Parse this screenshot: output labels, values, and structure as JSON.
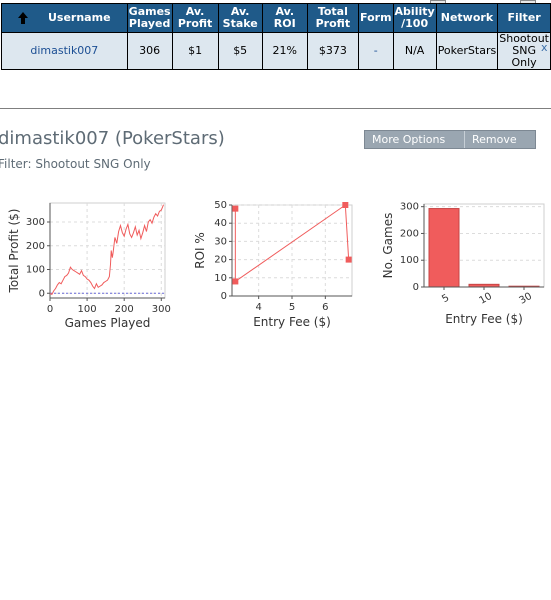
{
  "table": {
    "headers": [
      "Username",
      "Games Played",
      "Av. Profit",
      "Av. Stake",
      "Av. ROI",
      "Total Profit",
      "Form",
      "Ability /100",
      "Network",
      "Filter"
    ],
    "header_lines": [
      [
        "Username"
      ],
      [
        "Games",
        "Played"
      ],
      [
        "Av.",
        "Profit"
      ],
      [
        "Av.",
        "Stake"
      ],
      [
        "Av. ROI"
      ],
      [
        "Total",
        "Profit"
      ],
      [
        "Form"
      ],
      [
        "Ability",
        "/100"
      ],
      [
        "Network"
      ],
      [
        "Filter"
      ]
    ],
    "row": {
      "username": "dimastik007",
      "games_played": "306",
      "av_profit": "$1",
      "av_stake": "$5",
      "av_roi": "21%",
      "total_profit": "$373",
      "form": "-",
      "ability": "N/A",
      "network": "PokerStars",
      "filter_line1": "Shootout",
      "filter_line2": "SNG Only",
      "remove": "x"
    }
  },
  "player": {
    "title": "dimastik007 (PokerStars)",
    "filter": "Filter: Shootout SNG Only"
  },
  "options": {
    "more_options": "More Options",
    "remove": "Remove"
  },
  "colors": {
    "header_bg": "#1f5a89",
    "row_bg": "#dde7ef",
    "link": "#1c4f94",
    "series": "#f05c5c"
  },
  "chart_data": [
    {
      "type": "line",
      "xlabel": "Games Played",
      "ylabel": "Total Profit ($)",
      "xlim": [
        0,
        310
      ],
      "ylim": [
        -20,
        380
      ],
      "xticks": [
        "0",
        "100",
        "200",
        "300"
      ],
      "yticks": [
        "0",
        "100",
        "200",
        "300"
      ],
      "grid": true,
      "baseline": 0,
      "x": [
        0,
        5,
        10,
        15,
        20,
        25,
        30,
        35,
        40,
        45,
        50,
        55,
        60,
        65,
        70,
        75,
        80,
        85,
        90,
        95,
        100,
        105,
        110,
        115,
        120,
        125,
        130,
        135,
        140,
        145,
        150,
        155,
        160,
        163,
        165,
        168,
        170,
        175,
        180,
        185,
        190,
        195,
        200,
        205,
        210,
        215,
        220,
        225,
        230,
        235,
        240,
        245,
        250,
        255,
        260,
        265,
        270,
        275,
        280,
        285,
        290,
        295,
        300,
        306
      ],
      "y": [
        0,
        -5,
        10,
        20,
        35,
        45,
        40,
        55,
        70,
        75,
        85,
        110,
        100,
        95,
        90,
        85,
        80,
        95,
        75,
        70,
        60,
        55,
        45,
        30,
        20,
        40,
        25,
        30,
        35,
        45,
        50,
        55,
        70,
        120,
        180,
        150,
        170,
        235,
        210,
        260,
        285,
        255,
        240,
        270,
        290,
        250,
        235,
        255,
        280,
        245,
        265,
        230,
        255,
        285,
        260,
        300,
        310,
        295,
        320,
        335,
        325,
        345,
        350,
        373
      ]
    },
    {
      "type": "line",
      "xlabel": "Entry Fee ($)",
      "ylabel": "ROI %",
      "xlim": [
        3.2,
        6.8
      ],
      "ylim": [
        0,
        50
      ],
      "xticks": [
        "4",
        "5",
        "6"
      ],
      "yticks": [
        "0",
        "10",
        "20",
        "30",
        "40",
        "50"
      ],
      "grid": true,
      "x": [
        3.3,
        3.3,
        6.6,
        6.7
      ],
      "y": [
        48,
        8,
        50,
        20
      ]
    },
    {
      "type": "bar",
      "xlabel": "Entry Fee ($)",
      "ylabel": "No. Games",
      "categories": [
        "5",
        "10",
        "30"
      ],
      "values": [
        293,
        10,
        3
      ],
      "ylim": [
        0,
        310
      ],
      "yticks": [
        "0",
        "100",
        "200",
        "300"
      ],
      "grid": true
    }
  ]
}
